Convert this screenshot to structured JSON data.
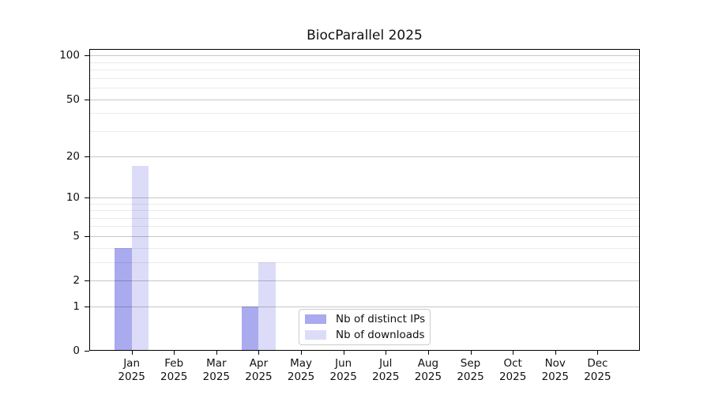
{
  "chart_data": {
    "type": "bar",
    "title": "BiocParallel 2025",
    "categories": [
      "Jan",
      "Feb",
      "Mar",
      "Apr",
      "May",
      "Jun",
      "Jul",
      "Aug",
      "Sep",
      "Oct",
      "Nov",
      "Dec"
    ],
    "x_year_label": "2025",
    "series": [
      {
        "name": "Nb of distinct IPs",
        "color": "#aaaaee",
        "values": [
          4,
          0,
          0,
          1,
          0,
          0,
          0,
          0,
          0,
          0,
          0,
          0
        ]
      },
      {
        "name": "Nb of downloads",
        "color": "#dcdcf8",
        "values": [
          17,
          0,
          0,
          3,
          0,
          0,
          0,
          0,
          0,
          0,
          0,
          0
        ]
      }
    ],
    "yscale": "log1p",
    "ylim": [
      0,
      111
    ],
    "xlim": [
      -1,
      12
    ],
    "ytick_labels": [
      "0",
      "1",
      "2",
      "5",
      "10",
      "20",
      "50",
      "100"
    ],
    "ytick_values": [
      0,
      1,
      2,
      5,
      10,
      20,
      50,
      100
    ],
    "yminor_values": [
      3,
      4,
      6,
      7,
      8,
      9,
      30,
      40,
      60,
      70,
      80,
      90
    ],
    "grid": "on",
    "grid_over_bars": true,
    "legend_position": "lower center",
    "colors": {
      "major_grid": "rgba(0,0,0,0.22)",
      "minor_grid": "rgba(0,0,0,0.08)",
      "spine": "#000000",
      "tick": "#000000",
      "text": "#111111",
      "legend_border": "#cccccc",
      "background": "#ffffff"
    }
  }
}
